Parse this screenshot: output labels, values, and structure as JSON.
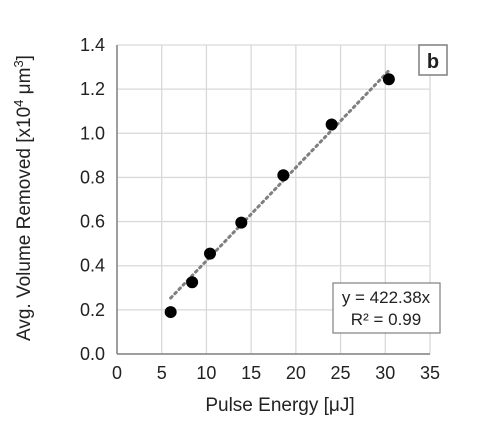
{
  "chart_data": {
    "type": "scatter",
    "panel_label": "b",
    "xlabel": "Pulse Energy [μJ]",
    "ylabel": "Avg. Volume Removed [x10",
    "ylabel_sup1": "4",
    "ylabel_mid": " μm",
    "ylabel_sup2": "3",
    "ylabel_end": "]",
    "xlim": [
      0,
      35
    ],
    "ylim": [
      0,
      1.4
    ],
    "x_ticks": [
      0,
      5,
      10,
      15,
      20,
      25,
      30,
      35
    ],
    "x_tick_labels": [
      "0",
      "5",
      "10",
      "15",
      "20",
      "25",
      "30",
      "35"
    ],
    "y_ticks": [
      0,
      0.2,
      0.4,
      0.6,
      0.8,
      1.0,
      1.2,
      1.4
    ],
    "y_tick_labels": [
      "0.0",
      "0.2",
      "0.4",
      "0.6",
      "0.8",
      "1.0",
      "1.2",
      "1.4"
    ],
    "grid": true,
    "points": [
      {
        "x": 6.0,
        "y": 0.19
      },
      {
        "x": 8.4,
        "y": 0.325
      },
      {
        "x": 10.4,
        "y": 0.455
      },
      {
        "x": 13.9,
        "y": 0.595
      },
      {
        "x": 18.6,
        "y": 0.81
      },
      {
        "x": 24.0,
        "y": 1.04
      },
      {
        "x": 30.4,
        "y": 1.245
      }
    ],
    "trendline": {
      "slope": 0.042238,
      "x_start": 6.0,
      "x_end": 30.4,
      "style": "dotted"
    },
    "equation": {
      "line1": "y = 422.38x",
      "line2": "R² = 0.99"
    },
    "colors": {
      "points": "#000000",
      "trendline": "#7f7f7f",
      "grid": "#d9d9d9",
      "axis": "#7f7f7f"
    }
  }
}
